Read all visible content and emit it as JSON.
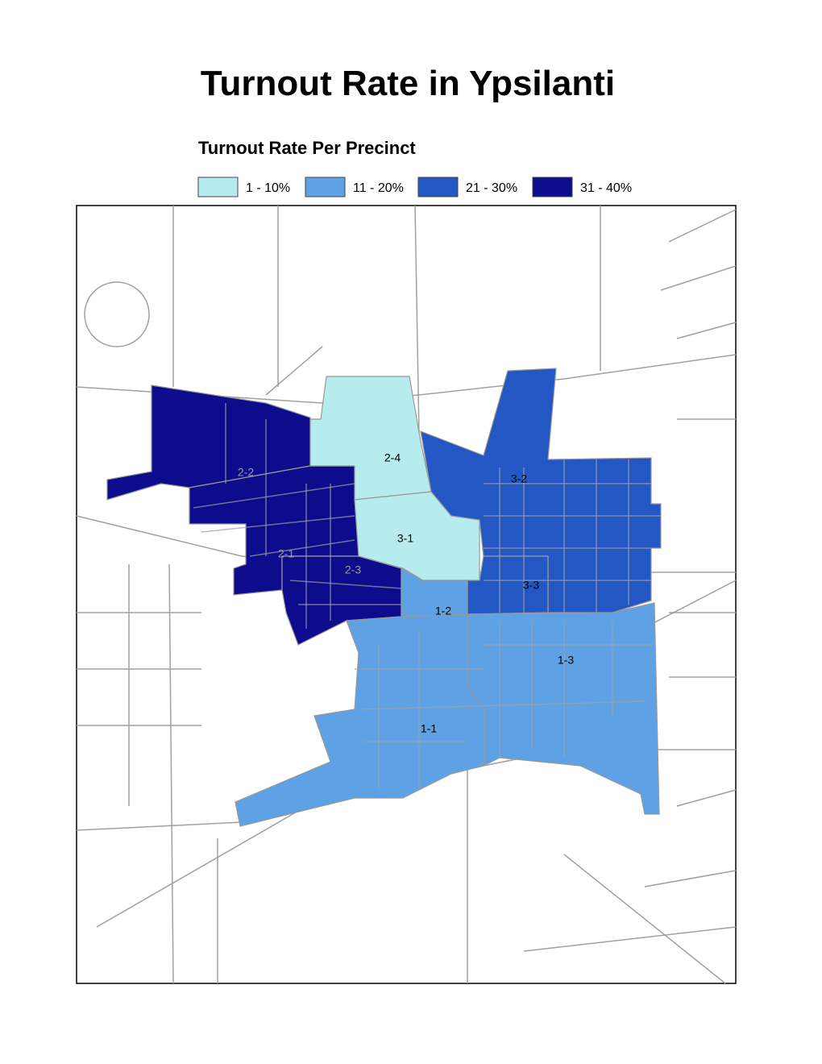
{
  "title": "Turnout Rate in Ypsilanti",
  "legend": {
    "title": "Turnout Rate Per Precinct",
    "items": [
      {
        "label": "1 - 10%",
        "color": "#b6eced"
      },
      {
        "label": "11 - 20%",
        "color": "#5ea1e5"
      },
      {
        "label": "21 - 30%",
        "color": "#2358c4"
      },
      {
        "label": "31 - 40%",
        "color": "#0c0c8c"
      }
    ]
  },
  "precincts": [
    {
      "label": "2-2",
      "color": "#0c0c8c"
    },
    {
      "label": "2-1",
      "color": "#0c0c8c"
    },
    {
      "label": "2-3",
      "color": "#0c0c8c"
    },
    {
      "label": "2-4",
      "color": "#b6eced"
    },
    {
      "label": "3-1",
      "color": "#b6eced"
    },
    {
      "label": "3-2",
      "color": "#2358c4"
    },
    {
      "label": "3-3",
      "color": "#2358c4"
    },
    {
      "label": "1-2",
      "color": "#5ea1e5"
    },
    {
      "label": "1-3",
      "color": "#5ea1e5"
    },
    {
      "label": "1-1",
      "color": "#5ea1e5"
    }
  ]
}
